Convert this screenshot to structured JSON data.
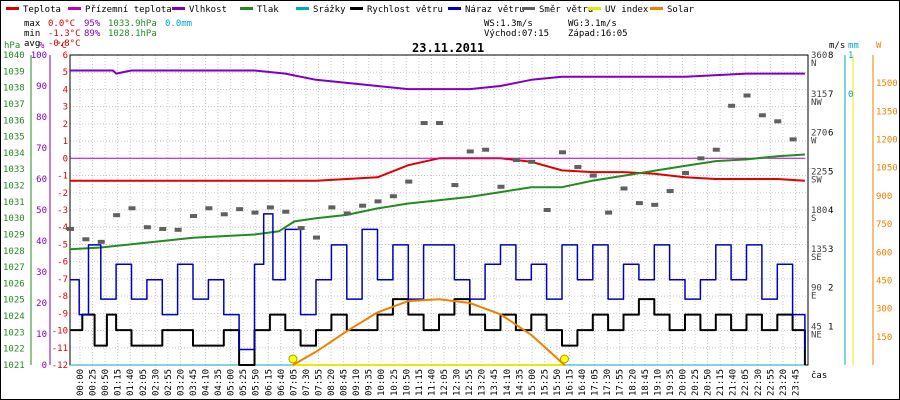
{
  "chart_data": {
    "type": "line",
    "title": "23.11.2011",
    "legend": [
      {
        "name": "Teplota",
        "color": "#e00000"
      },
      {
        "name": "Přízemní teplota",
        "color": "#c000c0"
      },
      {
        "name": "Vlhkost",
        "color": "#8000c0"
      },
      {
        "name": "Tlak",
        "color": "#228b22"
      },
      {
        "name": "Srážky",
        "color": "#00a8c8"
      },
      {
        "name": "Rychlost větru",
        "color": "#000000"
      },
      {
        "name": "Náraz větru",
        "color": "#0000c0"
      },
      {
        "name": "Směr větru",
        "color": "#606060"
      },
      {
        "name": "UV index",
        "color": "#e8e800"
      },
      {
        "name": "Solar",
        "color": "#f08000"
      }
    ],
    "stats": {
      "max_label": "max",
      "max_temp": "0.0°C",
      "max_hum": "95%",
      "max_press": "1033.9hPa",
      "max_rain": "0.0mm",
      "min_label": "min",
      "min_temp": "-1.3°C",
      "min_hum": "89%",
      "min_press": "1028.1hPa",
      "avg_label": "avg",
      "avg_temp": "-0.8°C",
      "ws": "WS:1.3m/s",
      "wg": "WG:3.1m/s",
      "sunrise": "Východ:07:15",
      "sunset": "Západ:16:05"
    },
    "axes": {
      "hpa_label": "hPa",
      "pct_label": "%",
      "temp_label": "°C",
      "ms_label": "m/s",
      "mm_label": "mm",
      "w_label": "W",
      "hpa_ticks": [
        "1040",
        "1039",
        "1038",
        "1037",
        "1036",
        "1035",
        "1034",
        "1033",
        "1032",
        "1031",
        "1030",
        "1029",
        "1028",
        "1027",
        "1026",
        "1025",
        "1024",
        "1023",
        "1022",
        "1021"
      ],
      "pct_ticks": [
        "100",
        "90",
        "80",
        "70",
        "60",
        "50",
        "40",
        "30",
        "20",
        "10",
        "0"
      ],
      "temp_ticks": [
        "6",
        "5",
        "4",
        "3",
        "2",
        "1",
        "0",
        "-1",
        "-2",
        "-3",
        "-4",
        "-5",
        "-6",
        "-7",
        "-8",
        "-9",
        "-10",
        "-11",
        "-12"
      ],
      "dir_ticks": [
        "360",
        "N",
        "315",
        "NW",
        "270",
        "W",
        "225",
        "SW",
        "180",
        "S",
        "135",
        "SE",
        "90",
        "E",
        "45",
        "NE"
      ],
      "ms_ticks": [
        "8",
        "7",
        "6",
        "5",
        "4",
        "3",
        "2",
        "1"
      ],
      "mm_ticks": [
        "1",
        "0"
      ],
      "w_ticks": [
        "1500",
        "1350",
        "1200",
        "1050",
        "900",
        "750",
        "600",
        "450",
        "300",
        "150"
      ],
      "x_label": "čas",
      "x_ticks": [
        "00:00",
        "00:25",
        "00:50",
        "01:15",
        "01:40",
        "02:05",
        "02:30",
        "02:55",
        "03:20",
        "03:45",
        "04:10",
        "04:35",
        "05:00",
        "05:25",
        "05:50",
        "06:15",
        "06:40",
        "07:05",
        "07:30",
        "07:55",
        "08:20",
        "08:45",
        "09:10",
        "09:35",
        "10:00",
        "10:25",
        "10:50",
        "11:15",
        "11:40",
        "12:05",
        "12:30",
        "12:55",
        "13:20",
        "13:45",
        "14:10",
        "14:35",
        "15:00",
        "15:25",
        "15:50",
        "16:15",
        "16:40",
        "17:05",
        "17:30",
        "17:55",
        "18:20",
        "18:45",
        "19:10",
        "19:35",
        "20:00",
        "20:25",
        "20:50",
        "21:15",
        "21:40",
        "22:05",
        "22:30",
        "22:55",
        "23:20",
        "23:45"
      ]
    },
    "ranges": {
      "temp_c": [
        -12,
        6
      ],
      "humidity_pct": [
        0,
        100
      ],
      "pressure_hpa": [
        1021,
        1040
      ],
      "wind_ms": [
        0,
        8
      ],
      "direction_deg": [
        0,
        360
      ],
      "solar_w": [
        0,
        1650
      ],
      "hours": [
        0,
        24
      ]
    },
    "series": [
      {
        "name": "Teplota",
        "x": [
          0,
          2,
          4,
          6,
          8,
          10,
          11,
          12,
          13,
          14,
          15,
          16,
          17,
          18,
          19,
          20,
          21,
          22,
          23,
          23.9
        ],
        "y": [
          -1.3,
          -1.3,
          -1.3,
          -1.3,
          -1.3,
          -1.1,
          -0.4,
          0.0,
          0.0,
          0.0,
          -0.2,
          -0.7,
          -0.8,
          -0.8,
          -0.9,
          -1.1,
          -1.2,
          -1.2,
          -1.2,
          -1.3
        ]
      },
      {
        "name": "Přízemní teplota",
        "x": [
          0,
          23.9
        ],
        "y": [
          0,
          0
        ]
      },
      {
        "name": "Vlhkost",
        "x": [
          0,
          1.4,
          1.5,
          2,
          4,
          6,
          7,
          8,
          9,
          10,
          11,
          12,
          12.5,
          13,
          14,
          15,
          16,
          18,
          20,
          22,
          23.9
        ],
        "y": [
          95,
          95,
          94,
          95,
          95,
          95,
          94,
          92,
          91,
          90,
          89,
          89,
          89,
          89,
          90,
          92,
          93,
          93,
          93,
          94,
          94
        ]
      },
      {
        "name": "Tlak",
        "x": [
          0,
          1,
          2,
          3,
          4,
          5,
          6,
          6.8,
          7.3,
          8,
          9,
          10,
          11,
          12,
          13,
          14,
          15,
          16,
          17,
          18,
          19,
          20,
          21,
          22,
          23,
          23.9
        ],
        "y": [
          1028.1,
          1028.2,
          1028.4,
          1028.6,
          1028.8,
          1028.9,
          1029.0,
          1029.2,
          1029.8,
          1030.0,
          1030.2,
          1030.6,
          1030.9,
          1031.1,
          1031.3,
          1031.6,
          1031.9,
          1031.9,
          1032.3,
          1032.6,
          1032.9,
          1033.2,
          1033.5,
          1033.6,
          1033.8,
          1033.9
        ]
      },
      {
        "name": "Srážky",
        "x": [
          0,
          23.9
        ],
        "y": [
          0,
          0
        ]
      },
      {
        "name": "Rychlost větru",
        "x": [
          0,
          0.4,
          0.8,
          1.2,
          1.5,
          2,
          3,
          4,
          5,
          5.5,
          6,
          6.5,
          7,
          7.5,
          8,
          8.5,
          9,
          10,
          10.5,
          11,
          11.5,
          12,
          12.5,
          13,
          13.5,
          14,
          14.5,
          15,
          15.5,
          16,
          16.5,
          17,
          17.5,
          18,
          18.5,
          19,
          19.5,
          20,
          20.5,
          21,
          21.5,
          22,
          22.5,
          23,
          23.5,
          23.9
        ],
        "y": [
          0.9,
          1.3,
          0.5,
          1.3,
          0.9,
          0.5,
          0.9,
          0.5,
          0.9,
          0,
          0.9,
          1.3,
          0.9,
          0.5,
          0.9,
          1.3,
          0.9,
          1.3,
          1.7,
          1.3,
          0.9,
          1.3,
          1.7,
          1.3,
          0.9,
          1.3,
          0.9,
          1.3,
          0.9,
          0.5,
          0.9,
          1.3,
          0.9,
          1.3,
          1.7,
          1.3,
          0.9,
          1.3,
          0.9,
          1.3,
          0.9,
          1.3,
          0.9,
          1.3,
          0.9,
          0
        ]
      },
      {
        "name": "Náraz větru",
        "x": [
          0,
          0.3,
          0.6,
          1,
          1.5,
          2,
          2.5,
          3,
          3.5,
          4,
          4.5,
          5,
          5.5,
          6,
          6.3,
          6.6,
          7,
          7.5,
          8,
          8.5,
          9,
          9.5,
          10,
          10.5,
          11,
          11.5,
          12,
          12.5,
          13,
          13.5,
          14,
          14.5,
          15,
          15.5,
          16,
          16.5,
          17,
          17.5,
          18,
          18.5,
          19,
          19.5,
          20,
          20.5,
          21,
          21.5,
          22,
          22.5,
          23,
          23.5,
          23.9
        ],
        "y": [
          2.2,
          1.3,
          3.1,
          1.7,
          2.6,
          1.7,
          2.2,
          1.3,
          2.6,
          1.7,
          2.2,
          1.3,
          0.4,
          2.6,
          3.9,
          2.2,
          3.5,
          1.3,
          2.2,
          3.1,
          1.7,
          3.5,
          2.2,
          3.1,
          1.7,
          3.1,
          3.1,
          2.2,
          1.7,
          2.6,
          3.1,
          2.2,
          2.6,
          1.7,
          3.1,
          2.2,
          3.1,
          1.7,
          2.6,
          2.2,
          3.1,
          2.2,
          1.7,
          2.2,
          3.1,
          2.2,
          3.1,
          1.7,
          2.6,
          1.3,
          0.4
        ]
      },
      {
        "name": "Směr větru",
        "x": [
          0,
          0.5,
          1,
          1.5,
          2,
          2.5,
          3,
          3.5,
          4,
          4.5,
          5,
          5.5,
          6,
          6.5,
          7,
          7.5,
          8,
          8.5,
          9,
          9.5,
          10,
          10.5,
          11,
          11.5,
          12,
          12.5,
          13,
          13.5,
          14,
          14.5,
          15,
          15.5,
          16,
          16.5,
          17,
          17.5,
          18,
          18.5,
          19,
          19.5,
          20,
          20.5,
          21,
          21.5,
          22,
          22.5,
          23,
          23.5
        ],
        "y": [
          158,
          146,
          143,
          174,
          182,
          160,
          158,
          157,
          173,
          182,
          175,
          181,
          177,
          183,
          178,
          159,
          148,
          183,
          176,
          185,
          190,
          196,
          213,
          281,
          281,
          209,
          248,
          250,
          207,
          238,
          236,
          180,
          247,
          230,
          220,
          177,
          205,
          188,
          186,
          202,
          223,
          240,
          250,
          301,
          313,
          290,
          283,
          262
        ]
      },
      {
        "name": "UV index",
        "x": [
          7.25,
          16.08
        ],
        "y": [
          0,
          0
        ]
      },
      {
        "name": "Solar",
        "x": [
          7.25,
          8,
          9,
          10,
          11,
          12,
          13,
          14,
          15,
          16.08
        ],
        "y": [
          0,
          70,
          180,
          280,
          340,
          350,
          330,
          270,
          160,
          0
        ]
      }
    ],
    "markers": {
      "sunrise_h": 7.25,
      "sunset_h": 16.08
    }
  }
}
